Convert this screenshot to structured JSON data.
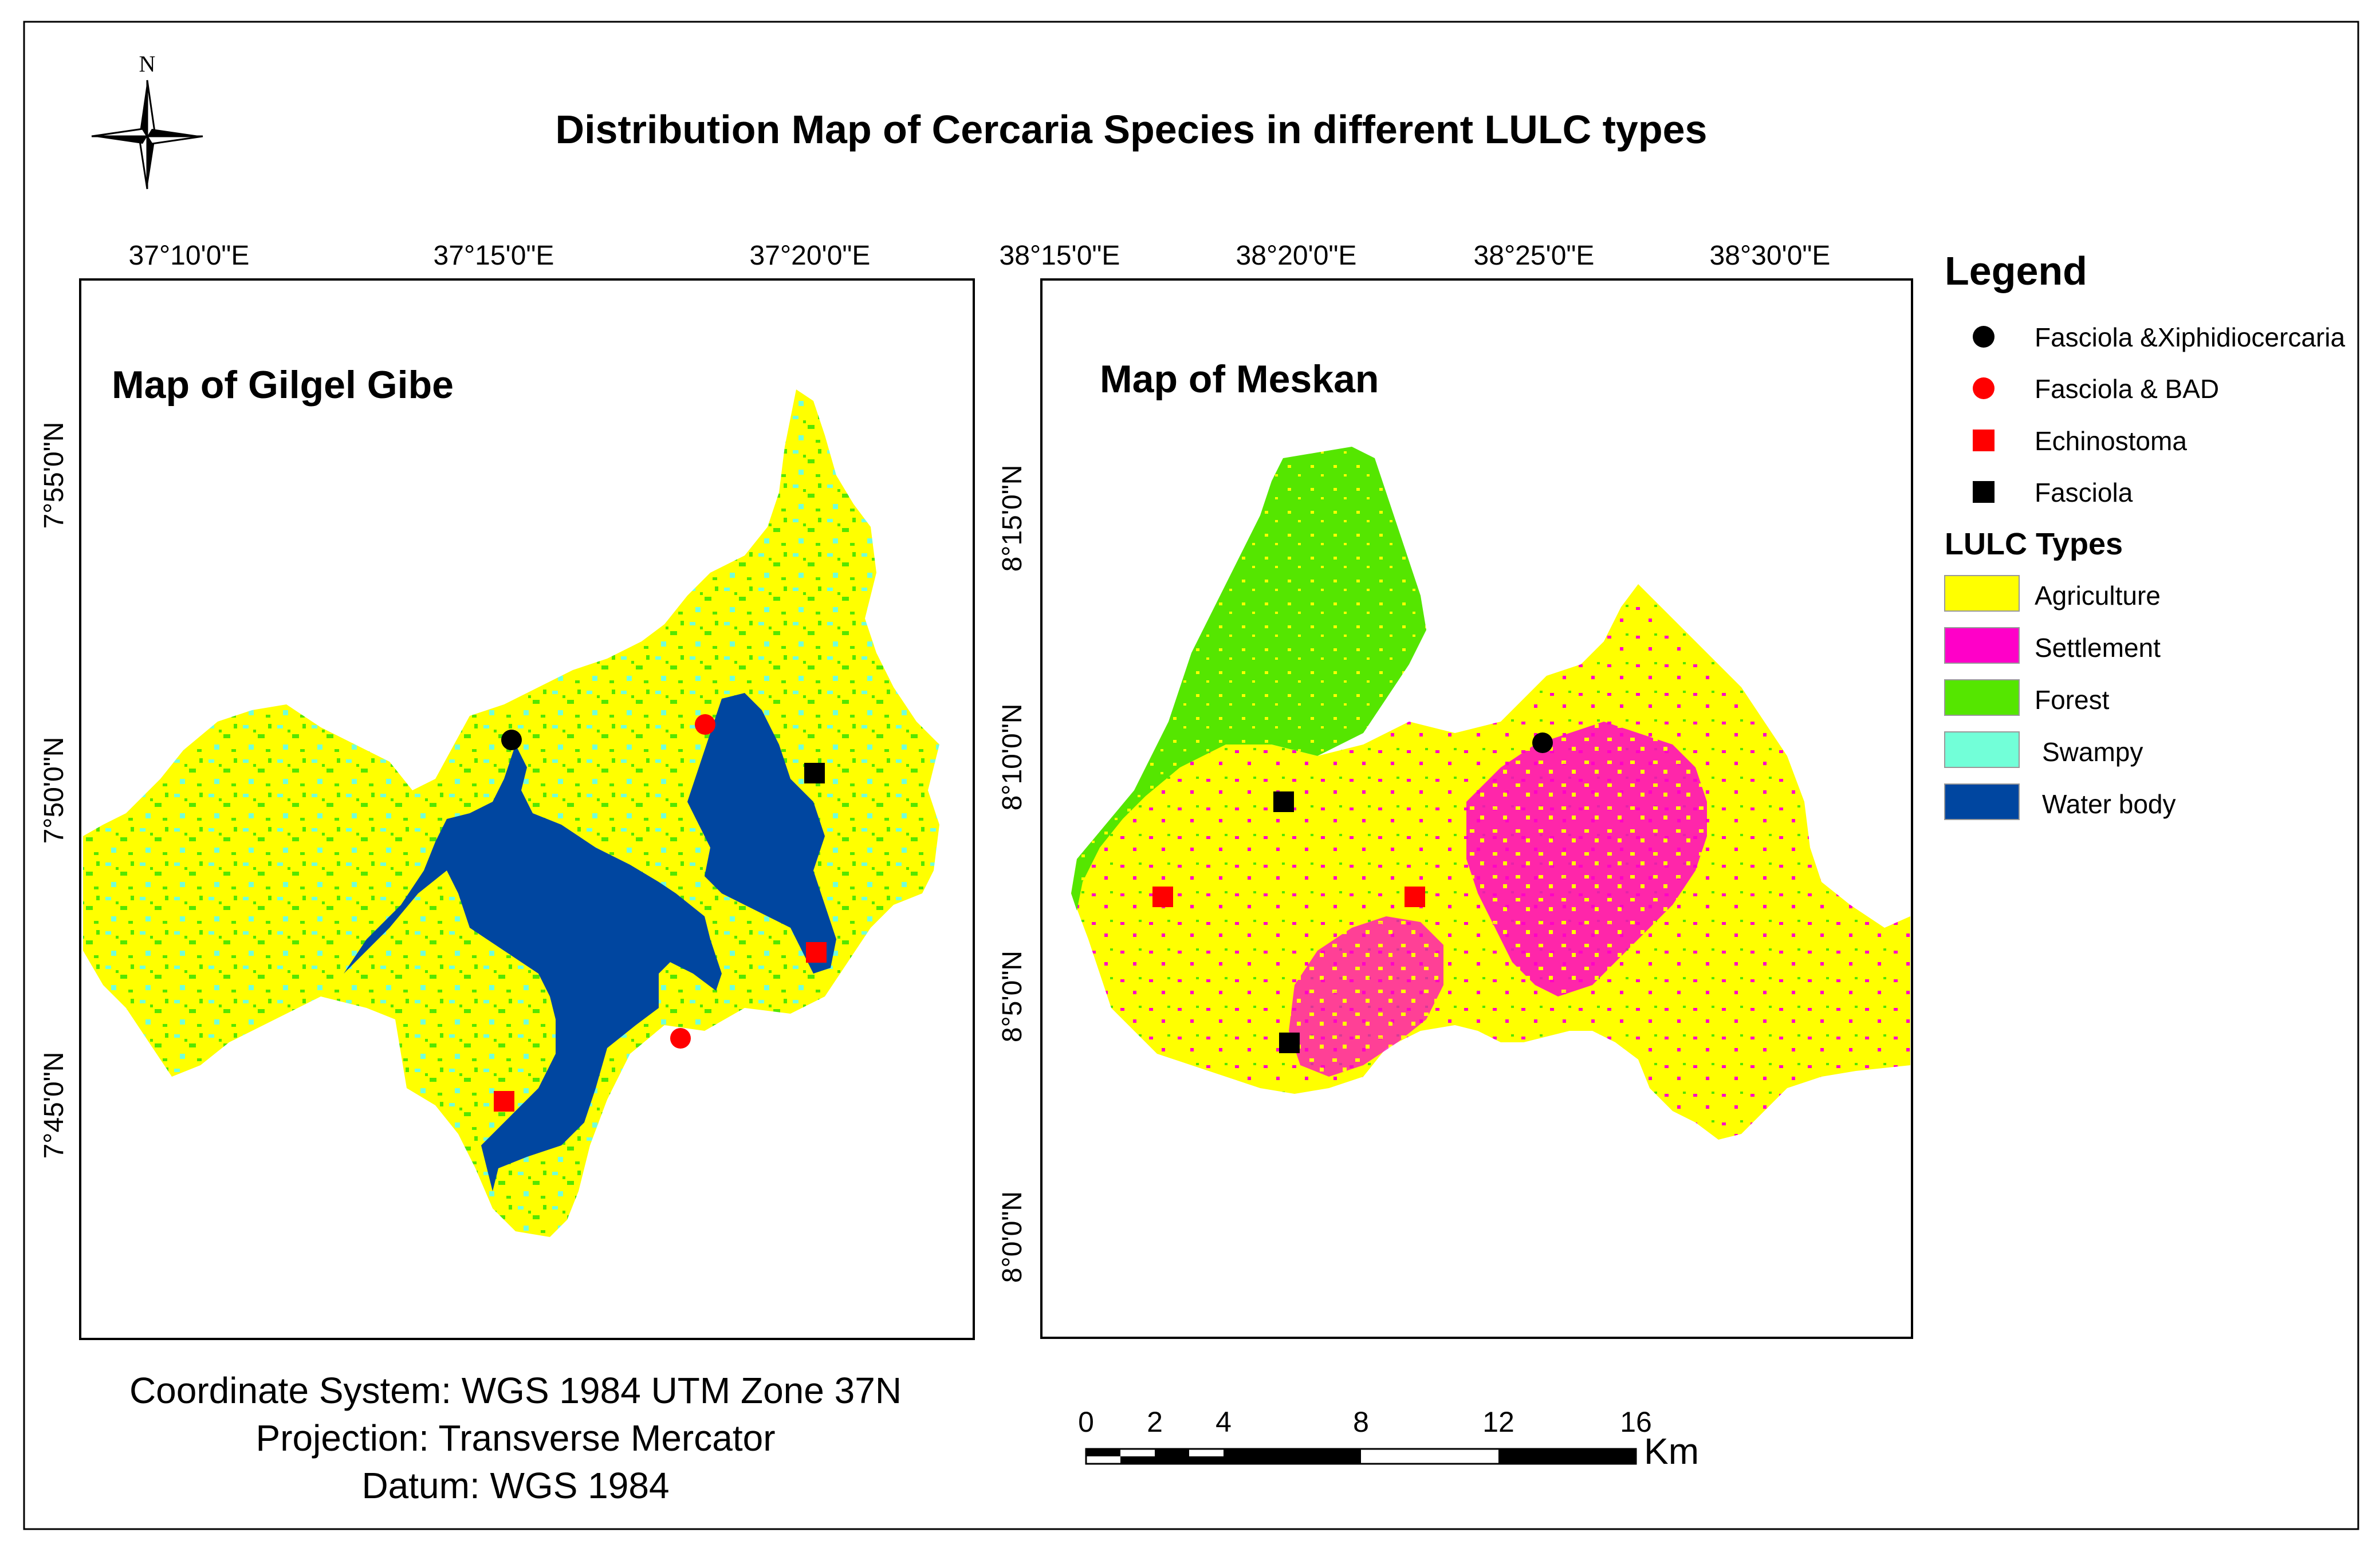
{
  "title": "Distribution Map of Cercaria Species in different LULC types",
  "north_arrow": {
    "label": "N"
  },
  "colors": {
    "agriculture": "#ffff00",
    "settlement": "#ff00c8",
    "forest": "#55e600",
    "swampy": "#72ffd8",
    "water": "#0046a0",
    "marker_black": "#000000",
    "marker_red": "#ff0000"
  },
  "maps": [
    {
      "title": "Map of Gilgel Gibe",
      "x_ticks": [
        "37°10'0\"E",
        "37°15'0\"E",
        "37°20'0\"E"
      ],
      "y_ticks": [
        "7°55'0\"N",
        "7°50'0\"N",
        "7°45'0\"N"
      ]
    },
    {
      "title": "Map of Meskan",
      "x_ticks": [
        "38°15'0\"E",
        "38°20'0\"E",
        "38°25'0\"E",
        "38°30'0\"E"
      ],
      "y_ticks": [
        "8°15'0\"N",
        "8°10'0\"N",
        "8°5'0\"N",
        "8°0'0\"N"
      ]
    }
  ],
  "legend": {
    "title": "Legend",
    "markers": [
      {
        "label": "Fasciola &Xiphidiocercaria",
        "shape": "circle",
        "color": "#000000"
      },
      {
        "label": "Fasciola & BAD",
        "shape": "circle",
        "color": "#ff0000"
      },
      {
        "label": "Echinostoma",
        "shape": "square",
        "color": "#ff0000"
      },
      {
        "label": "Fasciola",
        "shape": "square",
        "color": "#000000"
      }
    ],
    "lulc_title": "LULC Types",
    "lulc": [
      {
        "label": "Agriculture",
        "color": "#ffff00"
      },
      {
        "label": "Settlement",
        "color": "#ff00c8"
      },
      {
        "label": "Forest",
        "color": "#55e600"
      },
      {
        "label": "Swampy",
        "color": "#72ffd8"
      },
      {
        "label": "Water body",
        "color": "#0046a0"
      }
    ]
  },
  "info": {
    "line1": "Coordinate System: WGS 1984 UTM Zone 37N",
    "line2": "Projection: Transverse Mercator",
    "line3": "Datum: WGS 1984"
  },
  "scale_bar": {
    "labels": [
      "0",
      "2",
      "4",
      "8",
      "12",
      "16"
    ],
    "unit": "Km"
  }
}
